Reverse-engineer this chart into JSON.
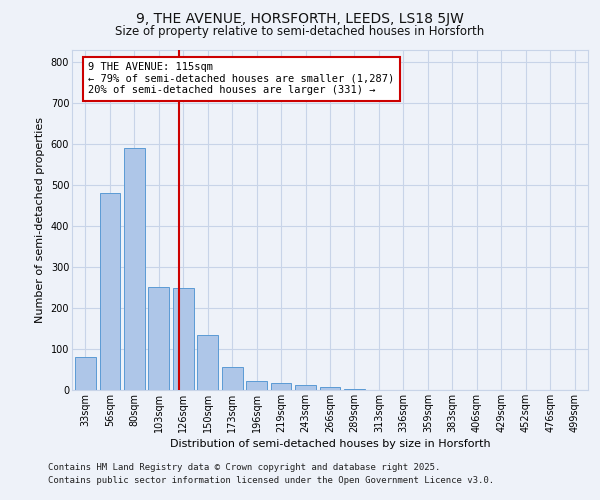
{
  "title1": "9, THE AVENUE, HORSFORTH, LEEDS, LS18 5JW",
  "title2": "Size of property relative to semi-detached houses in Horsforth",
  "xlabel": "Distribution of semi-detached houses by size in Horsforth",
  "ylabel": "Number of semi-detached properties",
  "bin_labels": [
    "33sqm",
    "56sqm",
    "80sqm",
    "103sqm",
    "126sqm",
    "150sqm",
    "173sqm",
    "196sqm",
    "219sqm",
    "243sqm",
    "266sqm",
    "289sqm",
    "313sqm",
    "336sqm",
    "359sqm",
    "383sqm",
    "406sqm",
    "429sqm",
    "452sqm",
    "476sqm",
    "499sqm"
  ],
  "bar_heights": [
    80,
    480,
    590,
    252,
    250,
    135,
    55,
    22,
    18,
    12,
    8,
    2,
    0,
    0,
    0,
    0,
    0,
    0,
    0,
    0,
    0
  ],
  "bar_color": "#aec6e8",
  "bar_edge_color": "#5b9bd5",
  "vline_color": "#cc0000",
  "annotation_text": "9 THE AVENUE: 115sqm\n← 79% of semi-detached houses are smaller (1,287)\n20% of semi-detached houses are larger (331) →",
  "annotation_box_color": "#ffffff",
  "annotation_box_edge": "#cc0000",
  "ylim": [
    0,
    830
  ],
  "yticks": [
    0,
    100,
    200,
    300,
    400,
    500,
    600,
    700,
    800
  ],
  "footnote1": "Contains HM Land Registry data © Crown copyright and database right 2025.",
  "footnote2": "Contains public sector information licensed under the Open Government Licence v3.0.",
  "bg_color": "#eef2f9",
  "grid_color": "#c8d4e8",
  "title1_fontsize": 10,
  "title2_fontsize": 8.5,
  "axis_label_fontsize": 8,
  "tick_fontsize": 7,
  "annotation_fontsize": 7.5,
  "footnote_fontsize": 6.5
}
